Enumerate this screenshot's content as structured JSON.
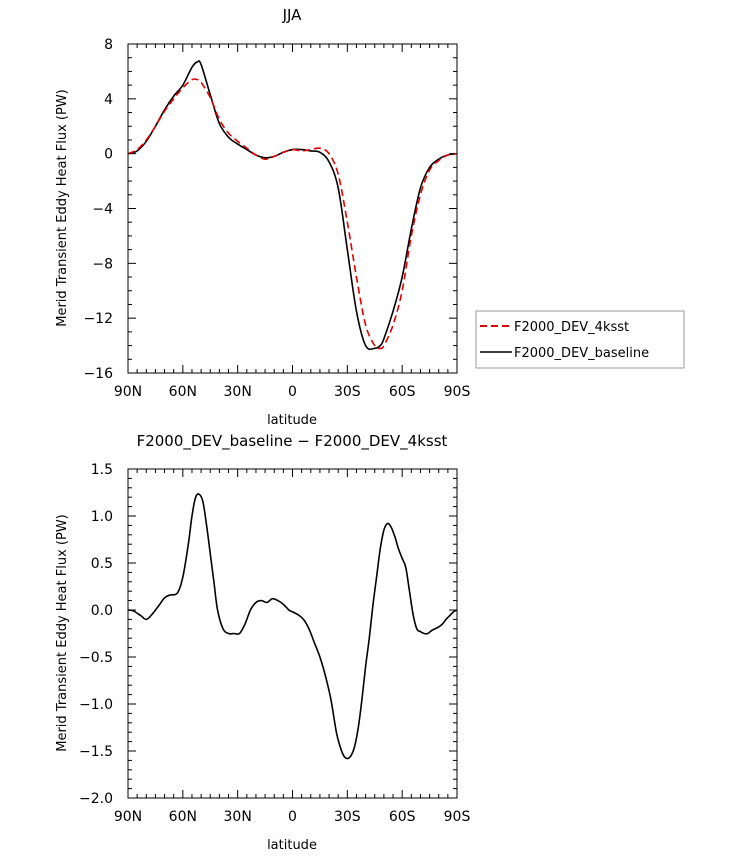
{
  "chart_data": [
    {
      "type": "line",
      "title": "JJA",
      "xlabel": "latitude",
      "ylabel": "Merid Transient Eddy Heat Flux (PW)",
      "xlim": [
        90,
        -90
      ],
      "ylim": [
        -16,
        8
      ],
      "xticks": [
        90,
        60,
        30,
        0,
        -30,
        -60,
        -90
      ],
      "xtick_labels": [
        "90N",
        "60N",
        "30N",
        "0",
        "30S",
        "60S",
        "90S"
      ],
      "yticks": [
        -16,
        -12,
        -8,
        -4,
        0,
        4,
        8
      ],
      "ytick_labels": [
        "−16",
        "−12",
        "−8",
        "−4",
        "0",
        "4",
        "8"
      ],
      "legend_position": "right",
      "series": [
        {
          "name": "F2000_DEV_4ksst",
          "color": "#e00000",
          "dash": "dashed",
          "x": [
            90,
            85,
            80,
            75,
            70,
            65,
            60,
            55,
            52,
            50,
            45,
            40,
            35,
            30,
            25,
            20,
            15,
            10,
            5,
            0,
            -5,
            -10,
            -15,
            -20,
            -25,
            -30,
            -35,
            -40,
            -45,
            -48,
            -50,
            -55,
            -60,
            -65,
            -70,
            -75,
            -80,
            -85,
            -90
          ],
          "y": [
            0,
            0.3,
            1.0,
            2.0,
            3.1,
            4.0,
            4.8,
            5.4,
            5.4,
            5.2,
            4.1,
            2.5,
            1.5,
            0.9,
            0.4,
            -0.1,
            -0.4,
            -0.2,
            0.1,
            0.3,
            0.2,
            0.3,
            0.4,
            0.0,
            -1.5,
            -5.0,
            -9.0,
            -12.5,
            -14.0,
            -14.2,
            -14.0,
            -12.5,
            -10.0,
            -6.0,
            -3.0,
            -1.2,
            -0.5,
            -0.1,
            0
          ]
        },
        {
          "name": "F2000_DEV_baseline",
          "color": "#000000",
          "dash": "solid",
          "x": [
            90,
            85,
            80,
            75,
            70,
            65,
            60,
            55,
            52,
            50,
            45,
            40,
            35,
            30,
            25,
            20,
            15,
            10,
            5,
            0,
            -5,
            -10,
            -15,
            -20,
            -25,
            -30,
            -35,
            -40,
            -45,
            -48,
            -50,
            -55,
            -60,
            -65,
            -70,
            -75,
            -80,
            -85,
            -90
          ],
          "y": [
            0,
            0.2,
            0.9,
            2.0,
            3.2,
            4.2,
            5.0,
            6.3,
            6.7,
            6.5,
            4.3,
            2.2,
            1.2,
            0.7,
            0.3,
            -0.1,
            -0.3,
            -0.2,
            0.1,
            0.3,
            0.3,
            0.2,
            0.1,
            -0.6,
            -2.5,
            -7.0,
            -11.5,
            -14.0,
            -14.2,
            -14.0,
            -13.5,
            -11.5,
            -9.0,
            -5.5,
            -2.5,
            -1.0,
            -0.4,
            -0.1,
            0
          ]
        }
      ]
    },
    {
      "type": "line",
      "title": "F2000_DEV_baseline − F2000_DEV_4ksst",
      "xlabel": "latitude",
      "ylabel": "Merid Transient Eddy Heat Flux (PW)",
      "xlim": [
        90,
        -90
      ],
      "ylim": [
        -2.0,
        1.5
      ],
      "xticks": [
        90,
        60,
        30,
        0,
        -30,
        -60,
        -90
      ],
      "xtick_labels": [
        "90N",
        "60N",
        "30N",
        "0",
        "30S",
        "60S",
        "90S"
      ],
      "yticks": [
        -2.0,
        -1.5,
        -1.0,
        -0.5,
        0.0,
        0.5,
        1.0,
        1.5
      ],
      "ytick_labels": [
        "−2.0",
        "−1.5",
        "−1.0",
        "−0.5",
        "0.0",
        "0.5",
        "1.0",
        "1.5"
      ],
      "series": [
        {
          "color": "#000000",
          "dash": "solid",
          "x": [
            90,
            87,
            83,
            80,
            77,
            73,
            70,
            67,
            63,
            60,
            57,
            55,
            53,
            51,
            49,
            47,
            45,
            43,
            41,
            38,
            35,
            32,
            29,
            26,
            23,
            20,
            17,
            14,
            11,
            8,
            5,
            2,
            0,
            -3,
            -6,
            -9,
            -12,
            -15,
            -18,
            -21,
            -24,
            -26,
            -28,
            -30,
            -32,
            -34,
            -36,
            -38,
            -40,
            -42,
            -44,
            -46,
            -48,
            -50,
            -52,
            -54,
            -56,
            -58,
            -60,
            -62,
            -64,
            -66,
            -68,
            -70,
            -72,
            -74,
            -76,
            -78,
            -80,
            -82,
            -84,
            -86,
            -88,
            -90
          ],
          "y": [
            0.0,
            -0.01,
            -0.06,
            -0.1,
            -0.05,
            0.05,
            0.13,
            0.16,
            0.18,
            0.35,
            0.7,
            1.0,
            1.2,
            1.23,
            1.15,
            0.9,
            0.6,
            0.3,
            0.0,
            -0.2,
            -0.25,
            -0.25,
            -0.25,
            -0.15,
            0.0,
            0.08,
            0.1,
            0.08,
            0.12,
            0.1,
            0.06,
            0.0,
            -0.02,
            -0.05,
            -0.1,
            -0.2,
            -0.35,
            -0.5,
            -0.7,
            -0.95,
            -1.3,
            -1.45,
            -1.55,
            -1.58,
            -1.55,
            -1.45,
            -1.25,
            -0.95,
            -0.6,
            -0.3,
            0.05,
            0.35,
            0.65,
            0.85,
            0.92,
            0.88,
            0.78,
            0.65,
            0.55,
            0.45,
            0.2,
            -0.05,
            -0.2,
            -0.23,
            -0.25,
            -0.25,
            -0.22,
            -0.2,
            -0.18,
            -0.15,
            -0.1,
            -0.06,
            -0.02,
            0.0
          ]
        }
      ]
    }
  ]
}
